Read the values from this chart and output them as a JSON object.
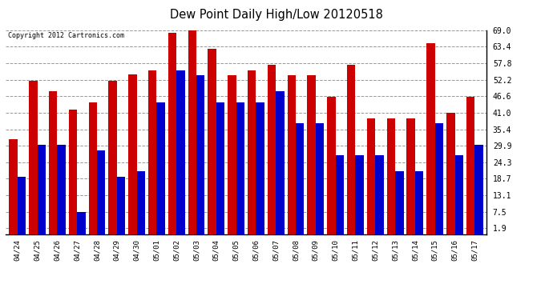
{
  "title": "Dew Point Daily High/Low 20120518",
  "copyright": "Copyright 2012 Cartronics.com",
  "categories": [
    "04/24",
    "04/25",
    "04/26",
    "04/27",
    "04/28",
    "04/29",
    "04/30",
    "05/01",
    "05/02",
    "05/03",
    "05/04",
    "05/05",
    "05/06",
    "05/07",
    "05/08",
    "05/09",
    "05/10",
    "05/11",
    "05/12",
    "05/13",
    "05/14",
    "05/15",
    "05/16",
    "05/17"
  ],
  "high_values": [
    32.0,
    51.8,
    48.2,
    42.0,
    44.6,
    51.8,
    54.0,
    55.4,
    68.0,
    69.0,
    62.6,
    53.6,
    55.4,
    57.2,
    53.6,
    53.6,
    46.4,
    57.2,
    39.2,
    39.2,
    39.2,
    64.4,
    41.0,
    46.4
  ],
  "low_values": [
    19.4,
    30.2,
    30.2,
    7.5,
    28.4,
    19.4,
    21.2,
    44.6,
    55.4,
    53.6,
    44.6,
    44.6,
    44.6,
    48.2,
    37.4,
    37.4,
    26.6,
    26.6,
    26.6,
    21.2,
    21.2,
    37.4,
    26.6,
    30.2
  ],
  "high_color": "#cc0000",
  "low_color": "#0000cc",
  "bg_color": "#ffffff",
  "grid_color": "#999999",
  "yticks": [
    1.9,
    7.5,
    13.1,
    18.7,
    24.3,
    29.9,
    35.4,
    41.0,
    46.6,
    52.2,
    57.8,
    63.4,
    69.0
  ],
  "ymin": 0.0,
  "ymax": 69.0
}
